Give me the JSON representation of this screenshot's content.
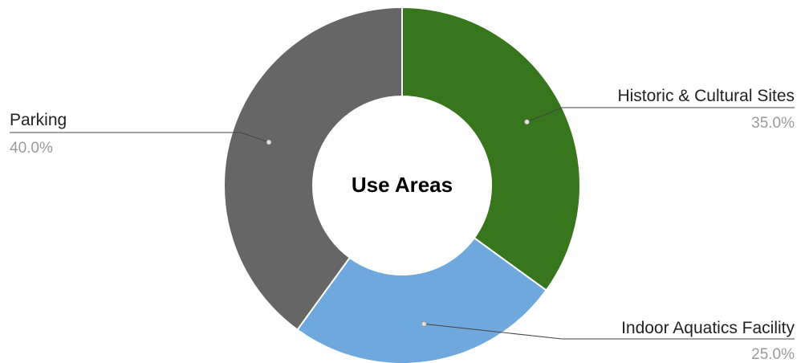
{
  "chart_data": {
    "type": "pie",
    "title": "Use Areas",
    "donut": true,
    "slices": [
      {
        "label": "Historic & Cultural Sites",
        "value": 35.0,
        "percent_label": "35.0%",
        "color": "#38761d"
      },
      {
        "label": "Indoor Aquatics Facility",
        "value": 25.0,
        "percent_label": "25.0%",
        "color": "#6fa8dc"
      },
      {
        "label": "Parking",
        "value": 40.0,
        "percent_label": "40.0%",
        "color": "#666666"
      }
    ]
  }
}
